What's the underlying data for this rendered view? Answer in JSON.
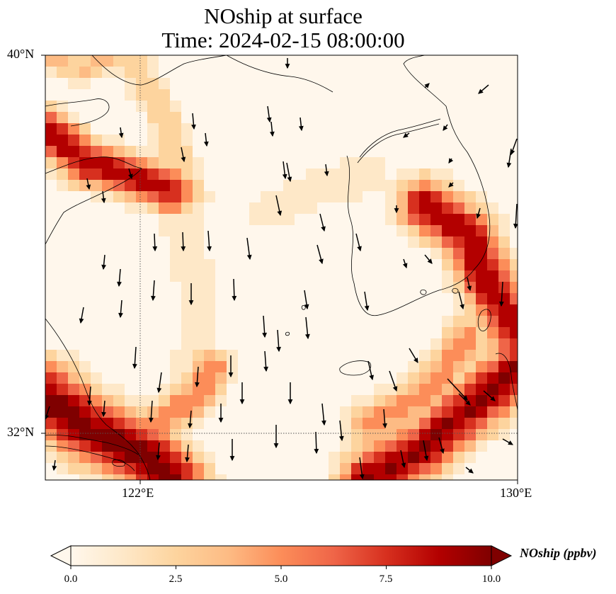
{
  "title": {
    "line1": "NOship at surface",
    "line2": "Time: 2024-02-15 08:00:00"
  },
  "map": {
    "lat_ticks": [
      "40°N",
      "32°N"
    ],
    "lon_ticks": [
      "122°E",
      "130°E"
    ],
    "extent": {
      "lon_min": 120,
      "lon_max": 130,
      "lat_min": 31,
      "lat_max": 40
    },
    "field_description": "Surface NOship concentration with wind vectors; high values along shipping lanes near Shanghai/Yangtze mouth, Korea Strait, and southern Korean coast",
    "colormap": "OrRd"
  },
  "colorbar": {
    "label": "NOship (ppbv)",
    "ticks": [
      "0.0",
      "2.5",
      "5.0",
      "7.5",
      "10.0"
    ],
    "min": 0,
    "max": 10,
    "colors": [
      "#fff7ec",
      "#fee8c8",
      "#fdd49e",
      "#fdbb84",
      "#fc8d59",
      "#ef6548",
      "#d7301f",
      "#b30000",
      "#7f0000"
    ]
  }
}
